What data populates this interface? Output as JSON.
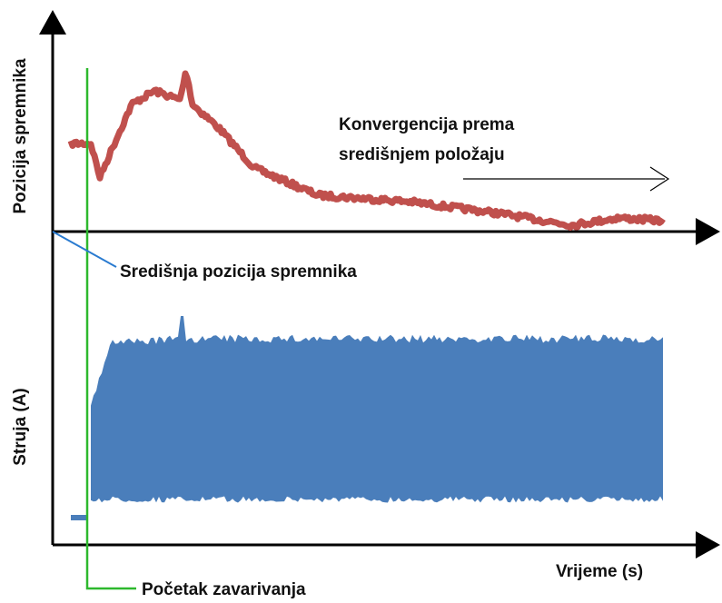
{
  "axes": {
    "top_y_label": "Pozicija spremnika",
    "bottom_y_label": "Struja (A)",
    "x_label": "Vrijeme (s)"
  },
  "annotations": {
    "center_label": "Središnja pozicija spremnika",
    "convergence_line1": "Konvergencija prema",
    "convergence_line2": "središnjem položaju",
    "start_label": "Početak zavarivanja"
  }
}
